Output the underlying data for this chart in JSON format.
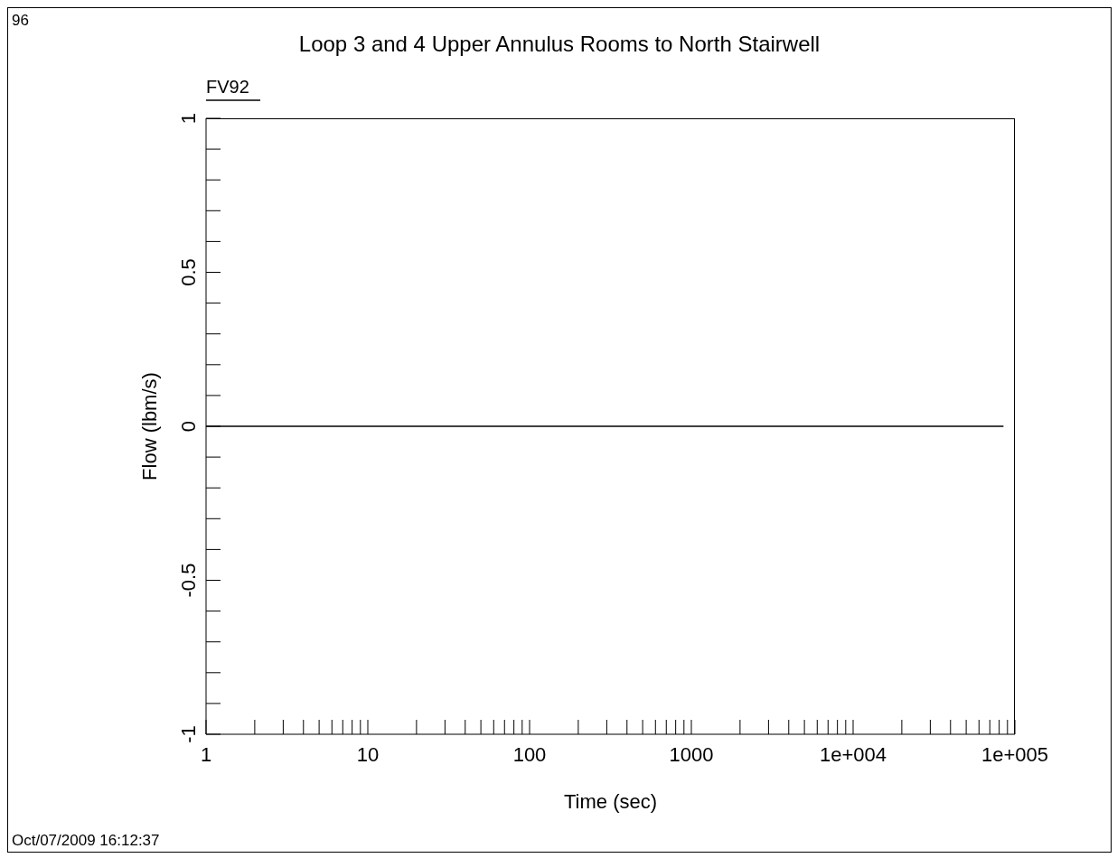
{
  "chart_data": {
    "type": "line",
    "title": "Loop 3 and 4 Upper Annulus Rooms to North Stairwell",
    "xlabel": "Time (sec)",
    "ylabel": "Flow (lbm/s)",
    "annotations": [
      "96",
      "Oct/07/2009 16:12:37"
    ],
    "x": [
      1,
      85000
    ],
    "series": [
      {
        "name": "FV92",
        "color": "#000000",
        "values": [
          0,
          0
        ]
      }
    ],
    "log": "x",
    "legend": "top left",
    "line_style": "solid",
    "xlim": [
      1,
      100000
    ],
    "xticks": [
      1,
      {
        "value": 2,
        "label": null
      },
      {
        "value": 3,
        "label": null
      },
      {
        "value": 4,
        "label": null
      },
      {
        "value": 5,
        "label": null
      },
      {
        "value": 6,
        "label": null
      },
      {
        "value": 7,
        "label": null
      },
      {
        "value": 8,
        "label": null
      },
      {
        "value": 9,
        "label": null
      },
      10,
      {
        "value": 20,
        "label": null
      },
      {
        "value": 30,
        "label": null
      },
      {
        "value": 40,
        "label": null
      },
      {
        "value": 50,
        "label": null
      },
      {
        "value": 60,
        "label": null
      },
      {
        "value": 70,
        "label": null
      },
      {
        "value": 80,
        "label": null
      },
      {
        "value": 90,
        "label": null
      },
      100,
      {
        "value": 200,
        "label": null
      },
      {
        "value": 300,
        "label": null
      },
      {
        "value": 400,
        "label": null
      },
      {
        "value": 500,
        "label": null
      },
      {
        "value": 600,
        "label": null
      },
      {
        "value": 700,
        "label": null
      },
      {
        "value": 800,
        "label": null
      },
      {
        "value": 900,
        "label": null
      },
      1000,
      {
        "value": 2000,
        "label": null
      },
      {
        "value": 3000,
        "label": null
      },
      {
        "value": 4000,
        "label": null
      },
      {
        "value": 5000,
        "label": null
      },
      {
        "value": 6000,
        "label": null
      },
      {
        "value": 7000,
        "label": null
      },
      {
        "value": 8000,
        "label": null
      },
      {
        "value": 9000,
        "label": null
      },
      {
        "value": 10000,
        "label": "1e+004"
      },
      {
        "value": 20000,
        "label": null
      },
      {
        "value": 30000,
        "label": null
      },
      {
        "value": 40000,
        "label": null
      },
      {
        "value": 50000,
        "label": null
      },
      {
        "value": 60000,
        "label": null
      },
      {
        "value": 70000,
        "label": null
      },
      {
        "value": 80000,
        "label": null
      },
      {
        "value": 90000,
        "label": null
      },
      {
        "value": 100000,
        "label": "1e+005"
      }
    ],
    "ylim": [
      -1,
      1
    ],
    "yticks": [
      -1,
      {
        "value": -0.9,
        "label": null
      },
      {
        "value": -0.8,
        "label": null
      },
      {
        "value": -0.7,
        "label": null
      },
      {
        "value": -0.6,
        "label": null
      },
      -0.5,
      {
        "value": -0.4,
        "label": null
      },
      {
        "value": -0.3,
        "label": null
      },
      {
        "value": -0.2,
        "label": null
      },
      {
        "value": -0.1,
        "label": null
      },
      0,
      {
        "value": 0.1,
        "label": null
      },
      {
        "value": 0.2,
        "label": null
      },
      {
        "value": 0.3,
        "label": null
      },
      {
        "value": 0.4,
        "label": null
      },
      0.5,
      {
        "value": 0.6,
        "label": null
      },
      {
        "value": 0.7,
        "label": null
      },
      {
        "value": 0.8,
        "label": null
      },
      {
        "value": 0.9,
        "label": null
      },
      1
    ]
  }
}
